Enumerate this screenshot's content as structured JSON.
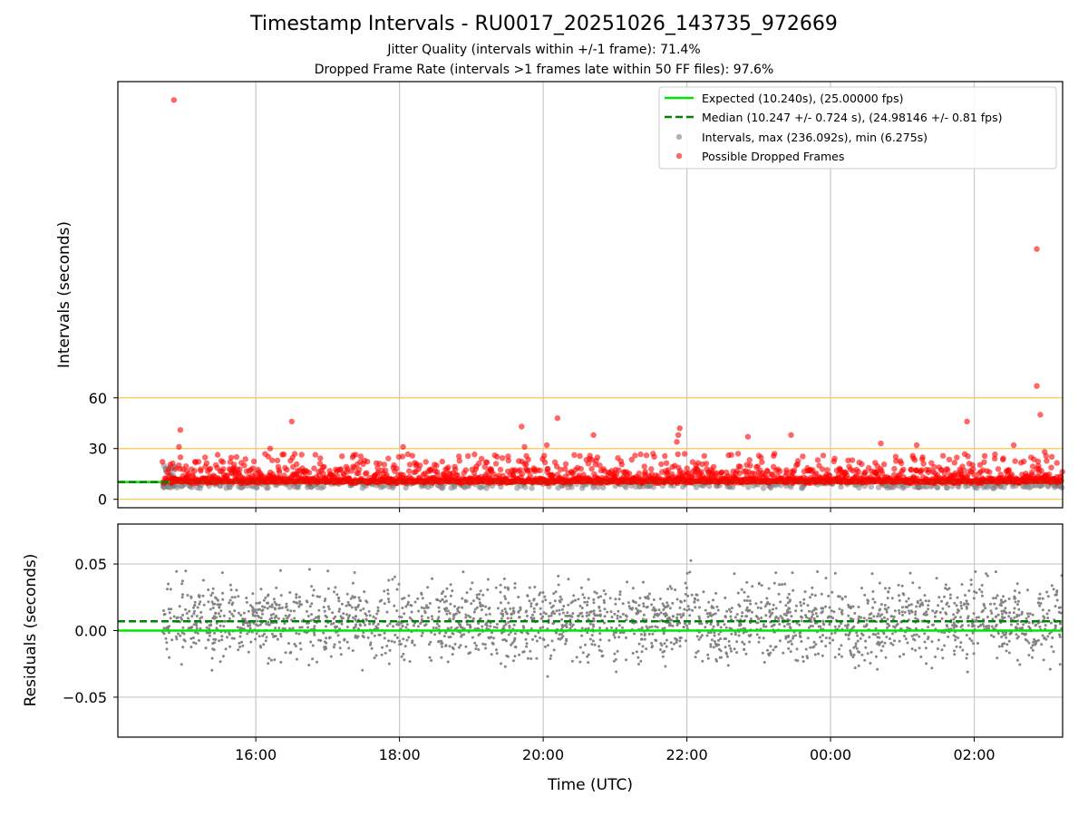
{
  "chart_data": {
    "title": "Timestamp Intervals - RU0017_20251026_143735_972669",
    "subtitle_1": "Jitter Quality (intervals within +/-1 frame): 71.4%",
    "subtitle_2": "Dropped Frame Rate (intervals >1 frames late within 50 FF files): 97.6%",
    "xlabel": "Time (UTC)",
    "x_tick_labels": [
      "16:00",
      "18:00",
      "20:00",
      "22:00",
      "00:00",
      "02:00"
    ],
    "x_tick_hours": [
      16,
      18,
      20,
      22,
      24,
      26
    ],
    "xlim_hours": [
      14.08,
      27.23
    ],
    "data_start_hours": 14.7,
    "panels": [
      {
        "type": "scatter",
        "ylabel": "Intervals (seconds)",
        "ylim": [
          -5,
          247
        ],
        "y_tick_labels": [
          "0",
          "30",
          "60"
        ],
        "y_tick_values": [
          0,
          30,
          60
        ],
        "reference_lines": [
          0,
          30,
          60
        ],
        "expected_seconds": 10.24,
        "median_seconds": 10.247,
        "max_seconds": 236.092,
        "min_seconds": 6.275,
        "highlighted_points": [
          {
            "t": 14.86,
            "v": 236.1
          },
          {
            "t": 14.95,
            "v": 41
          },
          {
            "t": 14.93,
            "v": 31
          },
          {
            "t": 16.5,
            "v": 46
          },
          {
            "t": 16.2,
            "v": 30
          },
          {
            "t": 18.05,
            "v": 31
          },
          {
            "t": 19.7,
            "v": 43
          },
          {
            "t": 19.74,
            "v": 31
          },
          {
            "t": 20.2,
            "v": 48
          },
          {
            "t": 20.05,
            "v": 32
          },
          {
            "t": 20.7,
            "v": 38
          },
          {
            "t": 21.9,
            "v": 42
          },
          {
            "t": 21.88,
            "v": 38
          },
          {
            "t": 21.86,
            "v": 34
          },
          {
            "t": 22.85,
            "v": 37
          },
          {
            "t": 23.45,
            "v": 38
          },
          {
            "t": 24.7,
            "v": 33
          },
          {
            "t": 25.2,
            "v": 32
          },
          {
            "t": 25.9,
            "v": 46
          },
          {
            "t": 26.55,
            "v": 32
          },
          {
            "t": 26.87,
            "v": 148
          },
          {
            "t": 26.87,
            "v": 67
          },
          {
            "t": 26.92,
            "v": 50
          },
          {
            "t": 26.98,
            "v": 28
          }
        ]
      },
      {
        "type": "scatter",
        "ylabel": "Residuals (seconds)",
        "ylim": [
          -0.08,
          0.08
        ],
        "y_tick_labels": [
          "0.05",
          "0.00",
          "−0.05"
        ],
        "y_tick_values": [
          0.05,
          0.0,
          -0.05
        ],
        "expected_residual": 0.0,
        "median_residual": 0.007,
        "residual_spread": 0.02
      }
    ],
    "legend": {
      "placement": "top-right",
      "entries": [
        {
          "label": "Expected (10.240s), (25.00000 fps)",
          "style": "solid-line",
          "color": "#00e600"
        },
        {
          "label": "Median (10.247 +/- 0.724 s), (24.98146 +/- 0.81 fps)",
          "style": "dashed-line",
          "color": "#008000"
        },
        {
          "label": "Intervals, max (236.092s), min (6.275s)",
          "style": "dot",
          "color": "#808080"
        },
        {
          "label": "Possible Dropped Frames",
          "style": "dot",
          "color": "#ff0000"
        }
      ]
    },
    "colors": {
      "expected": "#00e600",
      "median": "#008000",
      "intervals": "#808080",
      "dropped": "#ff0000",
      "reference": "#ffc34d",
      "grid": "#c8c8c8"
    }
  }
}
